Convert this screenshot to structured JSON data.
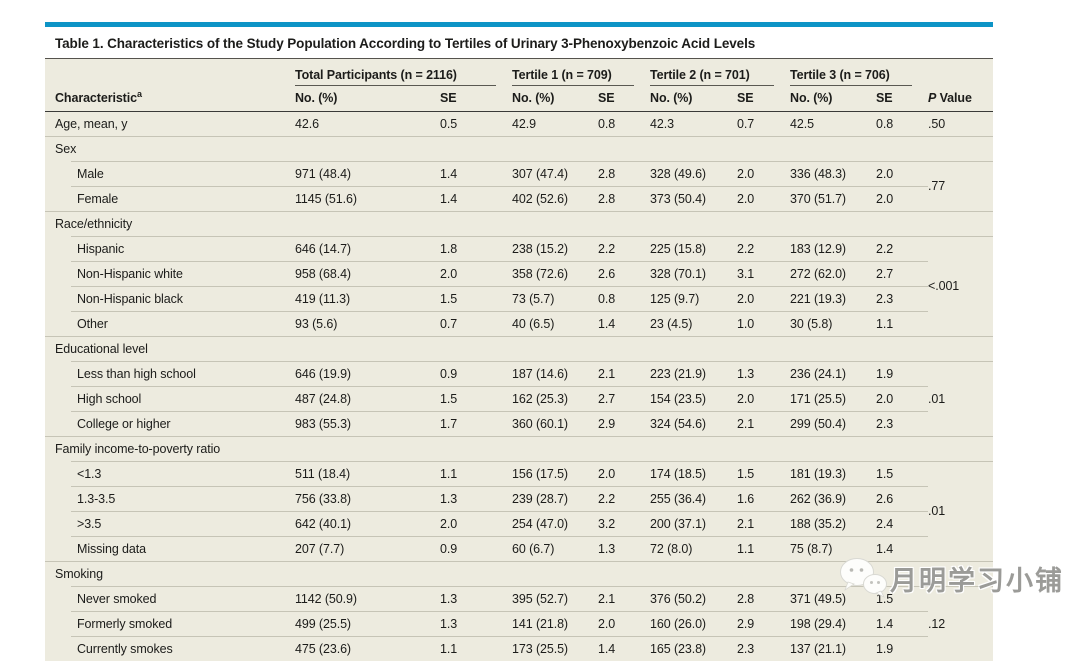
{
  "theme": {
    "page-bg": "#ffffff",
    "accent": "#0d94c6",
    "body-bg": "#edebdf",
    "row-line": "#c6c4b6",
    "dark-line": "#3a3a38",
    "title-rule": "#55534d",
    "text": "#1c1c1a"
  },
  "title": "Table 1. Characteristics of the Study Population According to Tertiles of Urinary 3-Phenoxybenzoic Acid Levels",
  "header": {
    "characteristic_label": "Characteristic",
    "characteristic_superscript": "a",
    "spanner_total": "Total Participants (n = 2116)",
    "spanner_t1": "Tertile 1 (n = 709)",
    "spanner_t2": "Tertile 2 (n = 701)",
    "spanner_t3": "Tertile 3 (n = 706)",
    "no_pct_label": "No. (%)",
    "se_label": "SE",
    "p_value_label_italic": "P",
    "p_value_label_rest": " Value"
  },
  "rows": [
    {
      "type": "data",
      "indent": 0,
      "label": "Age, mean, y",
      "values": [
        "42.6",
        "0.5",
        "42.9",
        "0.8",
        "42.3",
        "0.7",
        "42.5",
        "0.8"
      ],
      "p": ".50",
      "p_rowspan": 1
    },
    {
      "type": "section",
      "label": "Sex"
    },
    {
      "type": "data",
      "indent": 1,
      "label": "Male",
      "values": [
        "971 (48.4)",
        "1.4",
        "307 (47.4)",
        "2.8",
        "328 (49.6)",
        "2.0",
        "336 (48.3)",
        "2.0"
      ],
      "p": ".77",
      "p_rowspan": 2
    },
    {
      "type": "data",
      "indent": 1,
      "label": "Female",
      "values": [
        "1145 (51.6)",
        "1.4",
        "402 (52.6)",
        "2.8",
        "373 (50.4)",
        "2.0",
        "370 (51.7)",
        "2.0"
      ]
    },
    {
      "type": "section",
      "label": "Race/ethnicity"
    },
    {
      "type": "data",
      "indent": 1,
      "label": "Hispanic",
      "values": [
        "646 (14.7)",
        "1.8",
        "238 (15.2)",
        "2.2",
        "225 (15.8)",
        "2.2",
        "183 (12.9)",
        "2.2"
      ],
      "p": "<.001",
      "p_rowspan": 4
    },
    {
      "type": "data",
      "indent": 1,
      "label": "Non-Hispanic white",
      "values": [
        "958 (68.4)",
        "2.0",
        "358 (72.6)",
        "2.6",
        "328 (70.1)",
        "3.1",
        "272 (62.0)",
        "2.7"
      ]
    },
    {
      "type": "data",
      "indent": 1,
      "label": "Non-Hispanic black",
      "values": [
        "419 (11.3)",
        "1.5",
        "73 (5.7)",
        "0.8",
        "125 (9.7)",
        "2.0",
        "221 (19.3)",
        "2.3"
      ]
    },
    {
      "type": "data",
      "indent": 1,
      "label": "Other",
      "values": [
        "93 (5.6)",
        "0.7",
        "40 (6.5)",
        "1.4",
        "23 (4.5)",
        "1.0",
        "30 (5.8)",
        "1.1"
      ]
    },
    {
      "type": "section",
      "label": "Educational level"
    },
    {
      "type": "data",
      "indent": 1,
      "label": "Less than high school",
      "values": [
        "646 (19.9)",
        "0.9",
        "187 (14.6)",
        "2.1",
        "223 (21.9)",
        "1.3",
        "236 (24.1)",
        "1.9"
      ],
      "p": ".01",
      "p_rowspan": 3
    },
    {
      "type": "data",
      "indent": 1,
      "label": "High school",
      "values": [
        "487 (24.8)",
        "1.5",
        "162 (25.3)",
        "2.7",
        "154 (23.5)",
        "2.0",
        "171 (25.5)",
        "2.0"
      ]
    },
    {
      "type": "data",
      "indent": 1,
      "label": "College or higher",
      "values": [
        "983 (55.3)",
        "1.7",
        "360 (60.1)",
        "2.9",
        "324 (54.6)",
        "2.1",
        "299 (50.4)",
        "2.3"
      ]
    },
    {
      "type": "section",
      "label": "Family income-to-poverty ratio"
    },
    {
      "type": "data",
      "indent": 1,
      "label": "<1.3",
      "values": [
        "511 (18.4)",
        "1.1",
        "156 (17.5)",
        "2.0",
        "174 (18.5)",
        "1.5",
        "181 (19.3)",
        "1.5"
      ],
      "p": ".01",
      "p_rowspan": 4
    },
    {
      "type": "data",
      "indent": 1,
      "label": "1.3-3.5",
      "values": [
        "756 (33.8)",
        "1.3",
        "239 (28.7)",
        "2.2",
        "255 (36.4)",
        "1.6",
        "262 (36.9)",
        "2.6"
      ]
    },
    {
      "type": "data",
      "indent": 1,
      "label": ">3.5",
      "values": [
        "642 (40.1)",
        "2.0",
        "254 (47.0)",
        "3.2",
        "200 (37.1)",
        "2.1",
        "188 (35.2)",
        "2.4"
      ]
    },
    {
      "type": "data",
      "indent": 1,
      "label": "Missing data",
      "values": [
        "207 (7.7)",
        "0.9",
        "60 (6.7)",
        "1.3",
        "72 (8.0)",
        "1.1",
        "75 (8.7)",
        "1.4"
      ]
    },
    {
      "type": "section",
      "label": "Smoking"
    },
    {
      "type": "data",
      "indent": 1,
      "label": "Never smoked",
      "values": [
        "1142 (50.9)",
        "1.3",
        "395 (52.7)",
        "2.1",
        "376 (50.2)",
        "2.8",
        "371 (49.5)",
        "1.5"
      ],
      "p": ".12",
      "p_rowspan": 3
    },
    {
      "type": "data",
      "indent": 1,
      "label": "Formerly smoked",
      "values": [
        "499 (25.5)",
        "1.3",
        "141 (21.8)",
        "2.0",
        "160 (26.0)",
        "2.9",
        "198 (29.4)",
        "1.4"
      ]
    },
    {
      "type": "data",
      "indent": 1,
      "label": "Currently smokes",
      "values": [
        "475 (23.6)",
        "1.1",
        "173 (25.5)",
        "1.4",
        "165 (23.8)",
        "2.3",
        "137 (21.1)",
        "1.9"
      ]
    }
  ],
  "watermark": {
    "icon": "wechat-icon",
    "text": "月明学习小铺"
  }
}
